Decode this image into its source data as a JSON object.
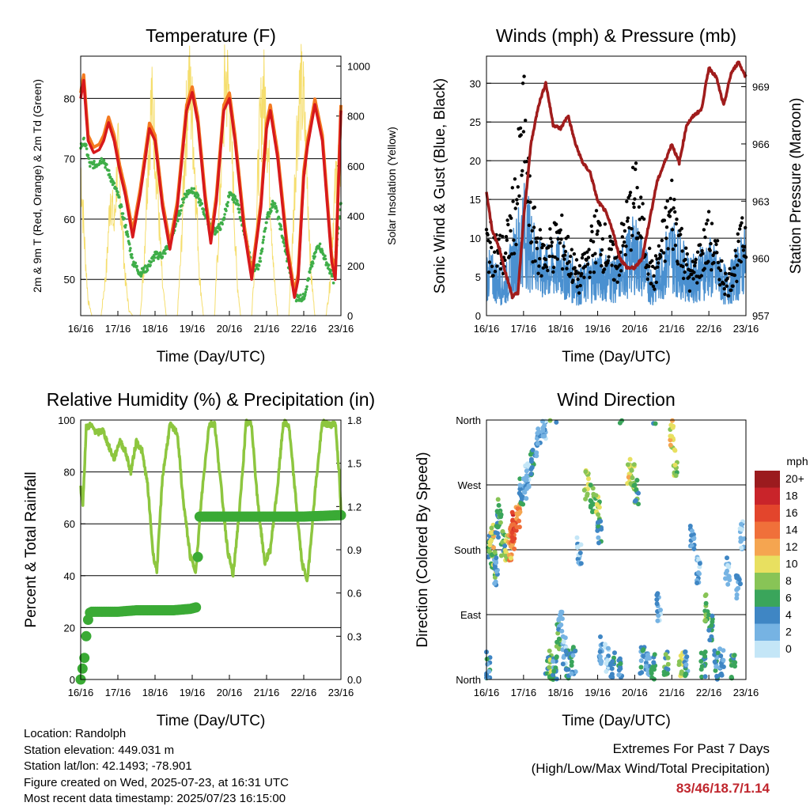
{
  "station": {
    "location": "Location: Randolph",
    "elevation": "Station elevation: 449.031 m",
    "latlon": "Station lat/lon: 42.1493; -78.901",
    "created": "Figure created on Wed, 2025-07-23, at 16:31 UTC",
    "recent": "Most recent data timestamp: 2025/07/23 16:15:00"
  },
  "extremes": {
    "title": "Extremes For Past 7 Days",
    "subtitle": "(High/Low/Max Wind/Total Precipitation)",
    "values": "83/46/18.7/1.14",
    "color": "#c0262d"
  },
  "chart_data": [
    {
      "type": "line",
      "title": "Temperature (F)",
      "xlabel": "Time (Day/UTC)",
      "ylabel": "2m & 9m T (Red, Orange) & 2m Td (Green)",
      "y2label": "Solar Insolation (Yellow)",
      "xticks": [
        "16/16",
        "17/16",
        "18/16",
        "19/16",
        "20/16",
        "21/16",
        "22/16",
        "23/16"
      ],
      "xlim": [
        0,
        7
      ],
      "ylim": [
        44,
        87
      ],
      "yticks": [
        50,
        60,
        70,
        80
      ],
      "y2lim": [
        0,
        1040
      ],
      "y2ticks": [
        0,
        200,
        400,
        600,
        800,
        1000
      ],
      "grid": true,
      "colors": {
        "t2m": "#d7191c",
        "t9m": "#f47a20",
        "td": "#3fae49",
        "solar": "#f5de6e"
      },
      "series": [
        {
          "name": "2m T",
          "x": [
            0,
            0.08,
            0.2,
            0.35,
            0.5,
            0.62,
            0.75,
            0.9,
            1.05,
            1.2,
            1.4,
            1.6,
            1.85,
            2.0,
            2.2,
            2.4,
            2.6,
            2.85,
            3.0,
            3.15,
            3.35,
            3.5,
            3.65,
            3.85,
            4.0,
            4.15,
            4.4,
            4.6,
            4.85,
            5.0,
            5.1,
            5.3,
            5.55,
            5.75,
            5.85,
            6.0,
            6.1,
            6.3,
            6.5,
            6.75,
            6.85,
            7.0
          ],
          "y": [
            80,
            83,
            73,
            71,
            71.5,
            73,
            76,
            73,
            68,
            64,
            57,
            64,
            75,
            73,
            62,
            55,
            62,
            78,
            81,
            76,
            63,
            56,
            63,
            78,
            80,
            73,
            58,
            50,
            62,
            75,
            78,
            70,
            55,
            47,
            50,
            67,
            72,
            79,
            73,
            53,
            50,
            78
          ]
        },
        {
          "name": "Td",
          "x": [
            0,
            0.1,
            0.25,
            0.4,
            0.6,
            0.8,
            1.0,
            1.2,
            1.4,
            1.6,
            1.8,
            2.0,
            2.2,
            2.4,
            2.6,
            2.8,
            3.0,
            3.2,
            3.4,
            3.6,
            3.8,
            4.0,
            4.2,
            4.4,
            4.6,
            4.8,
            5.0,
            5.2,
            5.4,
            5.6,
            5.8,
            6.0,
            6.2,
            6.4,
            6.6,
            6.8,
            7.0
          ],
          "y": [
            72,
            73,
            69,
            69,
            70,
            67,
            64,
            59,
            53,
            51,
            52,
            54,
            54,
            56,
            60,
            64,
            65,
            63,
            60,
            58,
            59,
            64,
            63,
            58,
            52,
            52,
            60,
            63,
            58,
            52,
            47,
            47,
            52,
            56,
            53,
            50,
            63
          ]
        },
        {
          "name": "Solar",
          "x": [
            0,
            0.1,
            0.2,
            0.3,
            0.45,
            0.55,
            0.7,
            0.8,
            0.9,
            1.0,
            1.1,
            1.2,
            1.3,
            1.4,
            1.45,
            1.55,
            1.6,
            1.7,
            1.8,
            1.9,
            2.0,
            2.1,
            2.2,
            2.3,
            2.4,
            2.5,
            2.6,
            2.7,
            2.8,
            2.9,
            3.0,
            3.1,
            3.2,
            3.3,
            3.4,
            3.5,
            3.6,
            3.7,
            3.8,
            3.9,
            4.0,
            4.1,
            4.2,
            4.3,
            4.4,
            4.5,
            4.6,
            4.7,
            4.8,
            4.9,
            5.0,
            5.1,
            5.2,
            5.3,
            5.4,
            5.5,
            5.6,
            5.7,
            5.8,
            5.9,
            6.0,
            6.1,
            6.2,
            6.3,
            6.4,
            6.5,
            6.6,
            6.7,
            6.8,
            6.9,
            7.0
          ],
          "y": [
            600,
            300,
            60,
            0,
            0,
            0,
            200,
            500,
            350,
            650,
            400,
            150,
            20,
            0,
            0,
            0,
            0,
            200,
            600,
            850,
            700,
            400,
            120,
            0,
            0,
            0,
            0,
            250,
            650,
            940,
            800,
            500,
            150,
            0,
            0,
            0,
            0,
            300,
            700,
            960,
            870,
            520,
            150,
            0,
            0,
            0,
            0,
            280,
            680,
            900,
            800,
            480,
            150,
            0,
            0,
            0,
            0,
            300,
            700,
            900,
            840,
            520,
            160,
            0,
            0,
            0,
            0,
            120,
            400,
            600,
            620
          ]
        }
      ]
    },
    {
      "type": "line",
      "title": "Winds (mph) & Pressure (mb)",
      "xlabel": "Time (Day/UTC)",
      "ylabel": "Sonic Wind & Gust (Blue, Black)",
      "y2label": "Station Pressure (Maroon)",
      "xticks": [
        "16/16",
        "17/16",
        "18/16",
        "19/16",
        "20/16",
        "21/16",
        "22/16",
        "23/16"
      ],
      "xlim": [
        0,
        7
      ],
      "ylim": [
        0,
        33.5
      ],
      "yticks": [
        0,
        5,
        10,
        15,
        20,
        25,
        30
      ],
      "y2lim": [
        957,
        970.6
      ],
      "y2ticks": [
        957,
        960,
        963,
        966,
        969
      ],
      "grid": true,
      "colors": {
        "wind": "#4a90d0",
        "gust": "#000000",
        "pressure": "#a01c1c"
      },
      "series": [
        {
          "name": "Wind",
          "x": [
            0,
            0.5,
            1.0,
            1.5,
            2.0,
            2.5,
            3.0,
            3.5,
            4.0,
            4.5,
            5.0,
            5.5,
            6.0,
            6.5,
            7.0
          ],
          "y": [
            6,
            4,
            12,
            6,
            7,
            4,
            6,
            5,
            9,
            4,
            9,
            5,
            7,
            4,
            8
          ]
        },
        {
          "name": "Gust",
          "x": [
            0,
            0.5,
            0.8,
            1.0,
            1.2,
            1.5,
            2.0,
            2.5,
            3.0,
            3.5,
            4.0,
            4.5,
            5.0,
            5.5,
            6.0,
            6.5,
            7.0
          ],
          "y": [
            12,
            10,
            19,
            31,
            15,
            10,
            13,
            6,
            14,
            8,
            20,
            6,
            18,
            6,
            13,
            5,
            14
          ]
        },
        {
          "name": "Pressure",
          "x": [
            0,
            0.15,
            0.35,
            0.55,
            0.7,
            0.85,
            1.0,
            1.2,
            1.4,
            1.6,
            1.8,
            2.0,
            2.2,
            2.4,
            2.6,
            2.8,
            3.0,
            3.2,
            3.4,
            3.6,
            3.8,
            4.0,
            4.2,
            4.4,
            4.6,
            4.8,
            5.0,
            5.2,
            5.4,
            5.6,
            5.8,
            6.0,
            6.2,
            6.4,
            6.6,
            6.8,
            7.0
          ],
          "y": [
            963.5,
            961.5,
            960.5,
            959,
            958,
            958.2,
            962,
            966,
            968,
            969.2,
            967,
            966.8,
            967.5,
            966,
            965,
            964.5,
            963,
            962.5,
            961.5,
            960,
            959.5,
            959.5,
            960,
            962,
            964,
            965,
            966,
            965,
            967,
            967.5,
            967.8,
            970,
            969.5,
            968,
            969.7,
            970.3,
            969.5
          ]
        }
      ]
    },
    {
      "type": "line",
      "title": "Relative Humidity (%) & Precipitation (in)",
      "xlabel": "Time (Day/UTC)",
      "ylabel": "Percent & Total Rainfall",
      "xticks": [
        "16/16",
        "17/16",
        "18/16",
        "19/16",
        "20/16",
        "21/16",
        "22/16",
        "23/16"
      ],
      "xlim": [
        0,
        7
      ],
      "ylim": [
        0,
        100
      ],
      "yticks": [
        0,
        20,
        40,
        60,
        80,
        100
      ],
      "y2lim": [
        0,
        1.8
      ],
      "y2ticks": [
        "0.0",
        "0.3",
        "0.6",
        "0.9",
        "1.2",
        "1.5",
        "1.8"
      ],
      "grid": true,
      "colors": {
        "rh": "#8dc63f",
        "precip": "#3aaa35"
      },
      "series": [
        {
          "name": "RH",
          "x": [
            0,
            0.06,
            0.15,
            0.25,
            0.45,
            0.6,
            0.75,
            0.9,
            1.05,
            1.2,
            1.35,
            1.5,
            1.65,
            1.8,
            1.95,
            2.05,
            2.2,
            2.4,
            2.6,
            2.75,
            2.95,
            3.1,
            3.25,
            3.45,
            3.6,
            3.75,
            3.95,
            4.1,
            4.3,
            4.45,
            4.6,
            4.75,
            4.95,
            5.1,
            5.3,
            5.45,
            5.6,
            5.75,
            5.95,
            6.1,
            6.3,
            6.5,
            6.7,
            6.85,
            6.95,
            7.0
          ],
          "y": [
            74,
            68,
            97,
            98,
            95,
            96,
            90,
            85,
            92,
            88,
            80,
            92,
            88,
            75,
            48,
            42,
            78,
            98,
            95,
            70,
            47,
            42,
            70,
            98,
            99,
            78,
            50,
            40,
            70,
            99,
            98,
            70,
            45,
            50,
            75,
            99,
            98,
            75,
            45,
            38,
            72,
            99,
            98,
            99,
            80,
            65
          ]
        },
        {
          "name": "Precipitation",
          "x": [
            0,
            0.1,
            0.15,
            0.22,
            0.3,
            0.5,
            1.0,
            1.5,
            2.0,
            2.5,
            2.95,
            3.1,
            3.12,
            3.16,
            3.2,
            4.0,
            5.0,
            6.0,
            7.0
          ],
          "y": [
            0,
            0.15,
            0.3,
            0.46,
            0.47,
            0.47,
            0.47,
            0.48,
            0.48,
            0.48,
            0.49,
            0.5,
            0.7,
            0.9,
            1.13,
            1.13,
            1.13,
            1.13,
            1.14
          ]
        }
      ]
    },
    {
      "type": "scatter",
      "title": "Wind Direction",
      "xlabel": "Time (Day/UTC)",
      "ylabel": "Direction (Colored By Speed)",
      "xticks": [
        "16/16",
        "17/16",
        "18/16",
        "19/16",
        "20/16",
        "21/16",
        "22/16",
        "23/16"
      ],
      "xlim": [
        0,
        7
      ],
      "ylim": [
        0,
        360
      ],
      "ytick_labels": [
        "North",
        "East",
        "South",
        "West",
        "North"
      ],
      "yticks": [
        0,
        90,
        180,
        270,
        360
      ],
      "grid": true,
      "colorbar": {
        "title": "mph",
        "labels": [
          "20+",
          "18",
          "16",
          "14",
          "12",
          "10",
          "8",
          "6",
          "4",
          "2",
          "0"
        ],
        "colors": [
          "#9b1b1e",
          "#c9242a",
          "#e3452c",
          "#f0703a",
          "#f5a550",
          "#e8e060",
          "#88c456",
          "#3aa55b",
          "#3f86c4",
          "#76b3e3",
          "#c4e6f7"
        ]
      },
      "series": [
        {
          "name": "Direction",
          "x": [
            0.05,
            0.1,
            0.15,
            0.2,
            0.25,
            0.3,
            0.35,
            0.45,
            0.55,
            0.65,
            0.7,
            0.75,
            0.85,
            0.95,
            1.05,
            1.1,
            1.25,
            1.4,
            1.55,
            1.7,
            1.75,
            1.85,
            1.95,
            2.0,
            2.1,
            2.2,
            2.35,
            2.5,
            2.7,
            2.85,
            3.0,
            3.05,
            3.1,
            3.25,
            3.4,
            3.6,
            3.85,
            3.95,
            4.05,
            4.2,
            4.35,
            4.5,
            4.65,
            4.85,
            5.0,
            5.1,
            5.25,
            5.4,
            5.55,
            5.7,
            5.85,
            5.95,
            6.05,
            6.2,
            6.35,
            6.5,
            6.65,
            6.8,
            6.9
          ],
          "y": [
            20,
            180,
            200,
            160,
            150,
            210,
            230,
            190,
            180,
            185,
            200,
            215,
            230,
            260,
            270,
            280,
            300,
            330,
            350,
            20,
            10,
            15,
            60,
            80,
            40,
            20,
            25,
            180,
            270,
            250,
            240,
            200,
            40,
            30,
            20,
            15,
            290,
            280,
            260,
            25,
            20,
            15,
            100,
            20,
            340,
            300,
            20,
            25,
            200,
            150,
            20,
            100,
            70,
            20,
            25,
            150,
            20,
            130,
            200
          ],
          "speed": [
            4,
            6,
            10,
            8,
            3,
            5,
            7,
            6,
            9,
            12,
            14,
            16,
            13,
            4,
            3,
            2,
            5,
            3,
            2,
            6,
            8,
            4,
            7,
            3,
            2,
            5,
            4,
            2,
            9,
            7,
            8,
            4,
            3,
            2,
            5,
            4,
            10,
            8,
            6,
            4,
            3,
            5,
            2,
            6,
            10,
            8,
            9,
            4,
            3,
            2,
            6,
            8,
            5,
            4,
            3,
            2,
            6,
            3,
            2
          ]
        }
      ]
    }
  ]
}
